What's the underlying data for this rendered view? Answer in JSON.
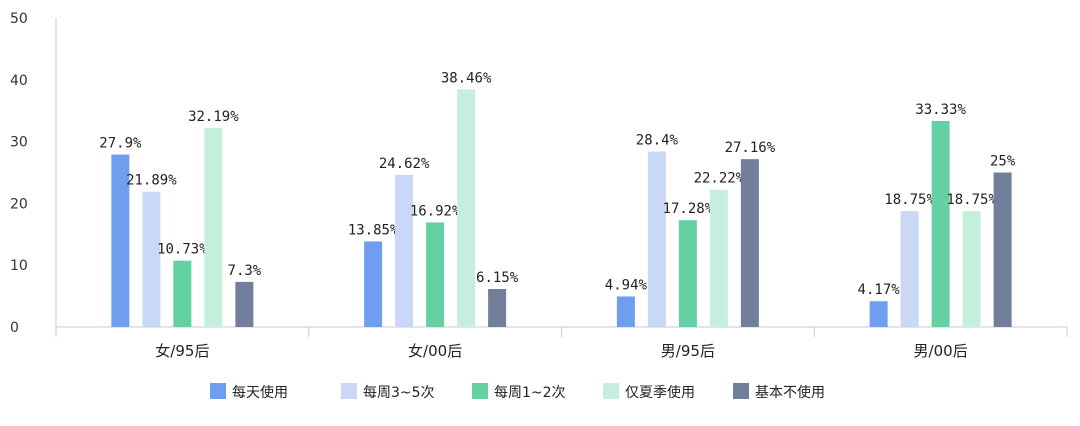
{
  "chart_data": {
    "type": "bar",
    "title": "",
    "xlabel": "",
    "ylabel": "",
    "ylim": [
      0,
      50
    ],
    "yticks": [
      "0",
      "10",
      "20",
      "30",
      "40",
      "50"
    ],
    "grid": false,
    "legend_position": "bottom",
    "categories": [
      "女/95后",
      "女/00后",
      "男/95后",
      "男/00后"
    ],
    "series": [
      {
        "name": "每天使用",
        "color": "#6f9ef0",
        "values": [
          27.9,
          13.85,
          4.94,
          4.17
        ],
        "labels": [
          "27.9%",
          "13.85%",
          "4.94%",
          "4.17%"
        ]
      },
      {
        "name": "每周3~5次",
        "color": "#c9d8f7",
        "values": [
          21.89,
          24.62,
          28.4,
          18.75
        ],
        "labels": [
          "21.89%",
          "24.62%",
          "28.4%",
          "18.75%"
        ]
      },
      {
        "name": "每周1~2次",
        "color": "#63d1a2",
        "values": [
          10.73,
          16.92,
          17.28,
          33.33
        ],
        "labels": [
          "10.73%",
          "16.92%",
          "17.28%",
          "33.33%"
        ]
      },
      {
        "name": "仅夏季使用",
        "color": "#c4efdd",
        "values": [
          32.19,
          38.46,
          22.22,
          18.75
        ],
        "labels": [
          "32.19%",
          "38.46%",
          "22.22%",
          "18.75%"
        ]
      },
      {
        "name": "基本不使用",
        "color": "#717f9d",
        "values": [
          7.3,
          6.15,
          27.16,
          25
        ],
        "labels": [
          "7.3%",
          "6.15%",
          "27.16%",
          "25%"
        ]
      }
    ]
  },
  "colors": {
    "axis": "#c5ced8",
    "text": "#222222"
  }
}
